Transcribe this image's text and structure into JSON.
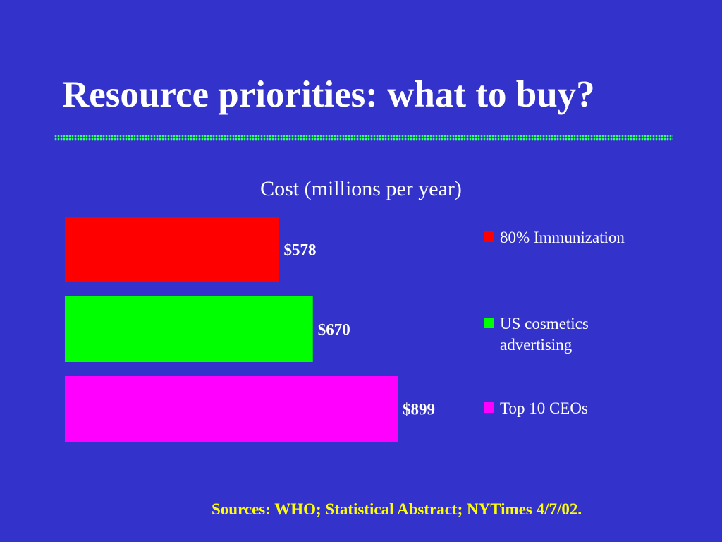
{
  "slide": {
    "title": "Resource priorities: what to buy?",
    "rule_color": "#33ff66",
    "background": "#3333cc"
  },
  "chart_data": {
    "type": "bar",
    "orientation": "horizontal",
    "title": "Cost (millions per year)",
    "categories": [
      "80% Immunization",
      "US cosmetics advertising",
      "Top 10 CEOs"
    ],
    "values": [
      578,
      670,
      899
    ],
    "value_labels": [
      "$578",
      "$670",
      "$899"
    ],
    "colors": [
      "#ff0000",
      "#00ff00",
      "#ff00ff"
    ],
    "xlim": [
      0,
      1000
    ],
    "grid": false,
    "legend_position": "right",
    "xlabel": "",
    "ylabel": ""
  },
  "legend": {
    "items": [
      {
        "label": "80% Immunization",
        "color": "#ff0000"
      },
      {
        "label": "US cosmetics advertising",
        "color": "#00ff00"
      },
      {
        "label": "Top 10 CEOs",
        "color": "#ff00ff"
      }
    ]
  },
  "footer": {
    "sources": "Sources: WHO; Statistical Abstract; NYTimes 4/7/02."
  }
}
